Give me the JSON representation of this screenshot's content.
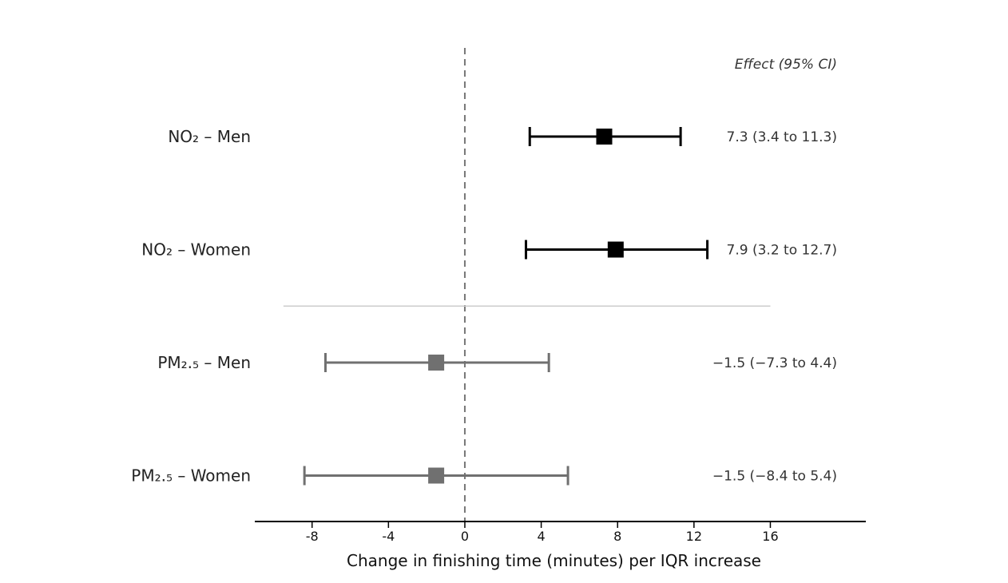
{
  "chart_data": {
    "type": "forest",
    "xlabel": "Change in finishing time (minutes) per IQR increase",
    "xlim": [
      -11,
      21
    ],
    "xticks": [
      -8,
      -4,
      0,
      4,
      8,
      12,
      16
    ],
    "reference_line": 0,
    "effect_header": "Effect (95% CI)",
    "groups_separator_after": 1,
    "rows": [
      {
        "label": "NO₂ – Men",
        "estimate": 7.3,
        "lower": 3.4,
        "upper": 11.3,
        "effect_text": "7.3 (3.4 to 11.3)",
        "color": "#000000"
      },
      {
        "label": "NO₂ – Women",
        "estimate": 7.9,
        "lower": 3.2,
        "upper": 12.7,
        "effect_text": "7.9 (3.2 to 12.7)",
        "color": "#000000"
      },
      {
        "label": "PM₂.₅ – Men",
        "estimate": -1.5,
        "lower": -7.3,
        "upper": 4.4,
        "effect_text": "−1.5 (−7.3 to 4.4)",
        "color": "#707070"
      },
      {
        "label": "PM₂.₅ – Women",
        "estimate": -1.5,
        "lower": -8.4,
        "upper": 5.4,
        "effect_text": "−1.5 (−8.4 to 5.4)",
        "color": "#707070"
      }
    ]
  }
}
